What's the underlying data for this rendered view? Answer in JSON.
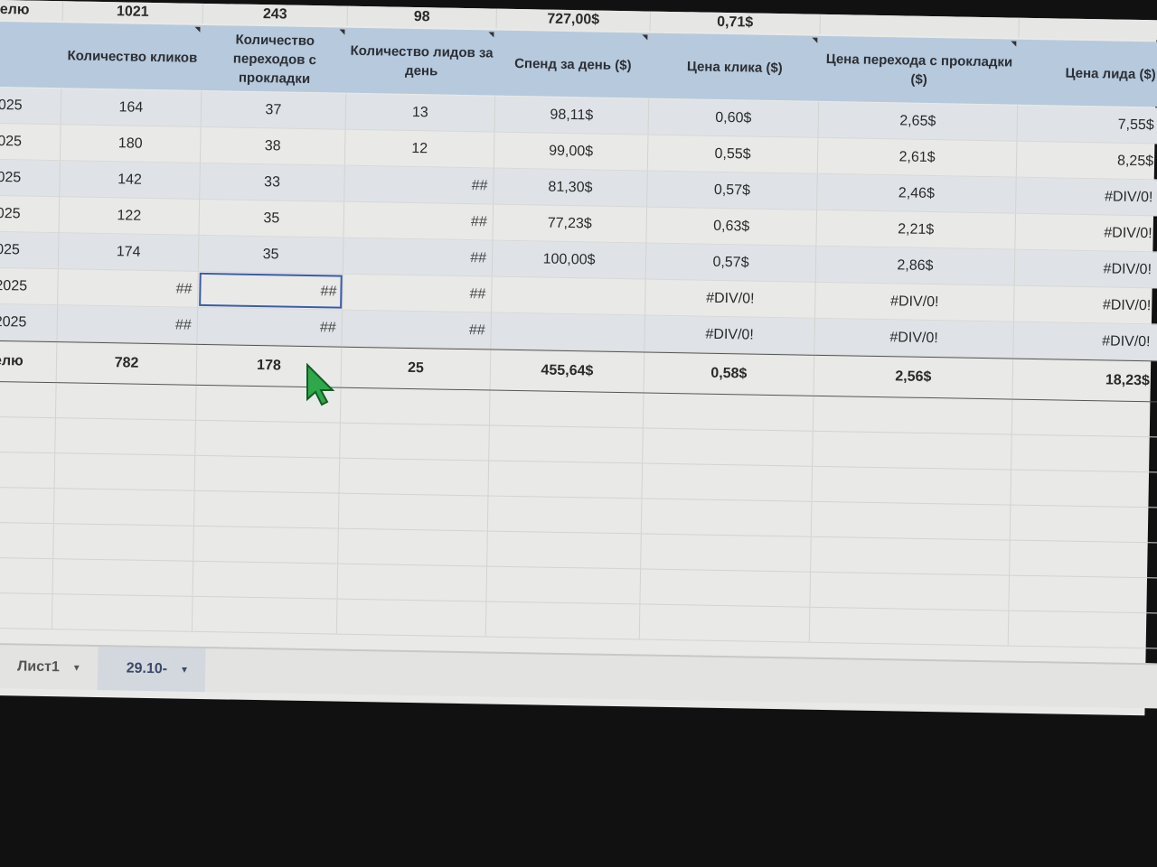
{
  "top_row": [
    "елю",
    "1021",
    "243",
    "98",
    "727,00$",
    "0,71$",
    "",
    ""
  ],
  "headers": [
    "",
    "Количество кликов",
    "Количество переходов с прокладки",
    "Количество лидов за день",
    "Спенд за день ($)",
    "Цена клика ($)",
    "Цена перехода с прокладки ($)",
    "Цена лида ($)"
  ],
  "rows": [
    [
      "025",
      "164",
      "37",
      "13",
      "98,11$",
      "0,60$",
      "2,65$",
      "7,55$"
    ],
    [
      "025",
      "180",
      "38",
      "12",
      "99,00$",
      "0,55$",
      "2,61$",
      "8,25$"
    ],
    [
      "025",
      "142",
      "33",
      "##",
      "81,30$",
      "0,57$",
      "2,46$",
      "#DIV/0!"
    ],
    [
      "025",
      "122",
      "35",
      "##",
      "77,23$",
      "0,63$",
      "2,21$",
      "#DIV/0!"
    ],
    [
      "025",
      "174",
      "35",
      "##",
      "100,00$",
      "0,57$",
      "2,86$",
      "#DIV/0!"
    ],
    [
      "2025",
      "##",
      "##",
      "##",
      "",
      "#DIV/0!",
      "#DIV/0!",
      "#DIV/0!"
    ],
    [
      "2025",
      "##",
      "##",
      "##",
      "",
      "#DIV/0!",
      "#DIV/0!",
      "#DIV/0!"
    ]
  ],
  "total": [
    "елю",
    "782",
    "178",
    "25",
    "455,64$",
    "0,58$",
    "2,56$",
    "18,23$"
  ],
  "tabs": [
    {
      "label": "Лист1",
      "active": false
    },
    {
      "label": "29.10-",
      "active": true
    }
  ],
  "colors": {
    "header_bg": "#b7c9dc",
    "cursor": "#2ea84a",
    "selection": "#3b5ca8"
  }
}
